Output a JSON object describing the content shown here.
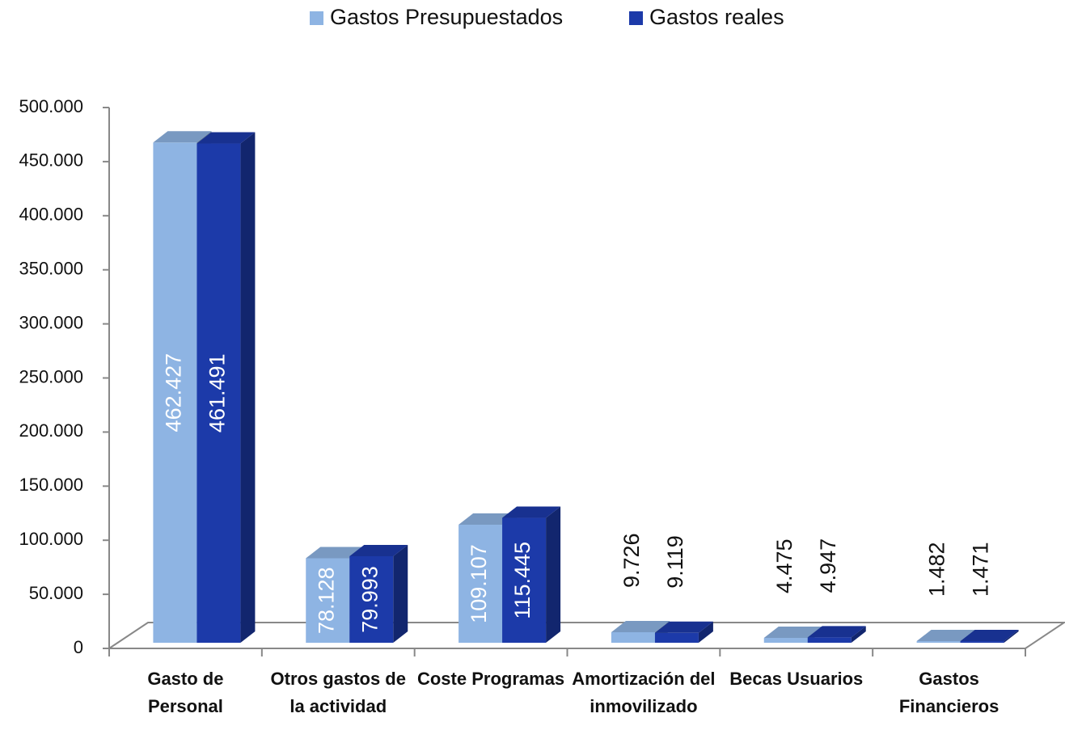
{
  "chart_data": {
    "type": "bar3d",
    "categories": [
      "Gasto de Personal",
      "Otros gastos de la actividad",
      "Coste Programas",
      "Amortización del inmovilizado",
      "Becas Usuarios",
      "Gastos Financieros"
    ],
    "series": [
      {
        "name": "Gastos Presupuestados",
        "color": "#8eb4e3",
        "values": [
          462427,
          78128,
          109107,
          9726,
          4475,
          1482
        ],
        "value_labels": [
          "462.427",
          "78.128",
          "109.107",
          "9.726",
          "4.475",
          "1.482"
        ]
      },
      {
        "name": "Gastos reales",
        "color": "#1c3aa9",
        "values": [
          461491,
          79993,
          115445,
          9119,
          4947,
          1471
        ],
        "value_labels": [
          "461.491",
          "79.993",
          "115.445",
          "9.119",
          "4.947",
          "1.471"
        ]
      }
    ],
    "ylim": [
      0,
      500000
    ],
    "yticks": [
      0,
      {
        "value": 50000,
        "label": "50.000"
      },
      {
        "value": 100000,
        "label": "100.000"
      },
      {
        "value": 150000,
        "label": "150.000"
      },
      {
        "value": 200000,
        "label": "200.000"
      },
      {
        "value": 250000,
        "label": "250.000"
      },
      {
        "value": 300000,
        "label": "300.000"
      },
      {
        "value": 350000,
        "label": "350.000"
      },
      {
        "value": 400000,
        "label": "400.000"
      },
      {
        "value": 450000,
        "label": "450.000"
      },
      {
        "value": 500000,
        "label": "500.000"
      }
    ],
    "legend": "top"
  }
}
